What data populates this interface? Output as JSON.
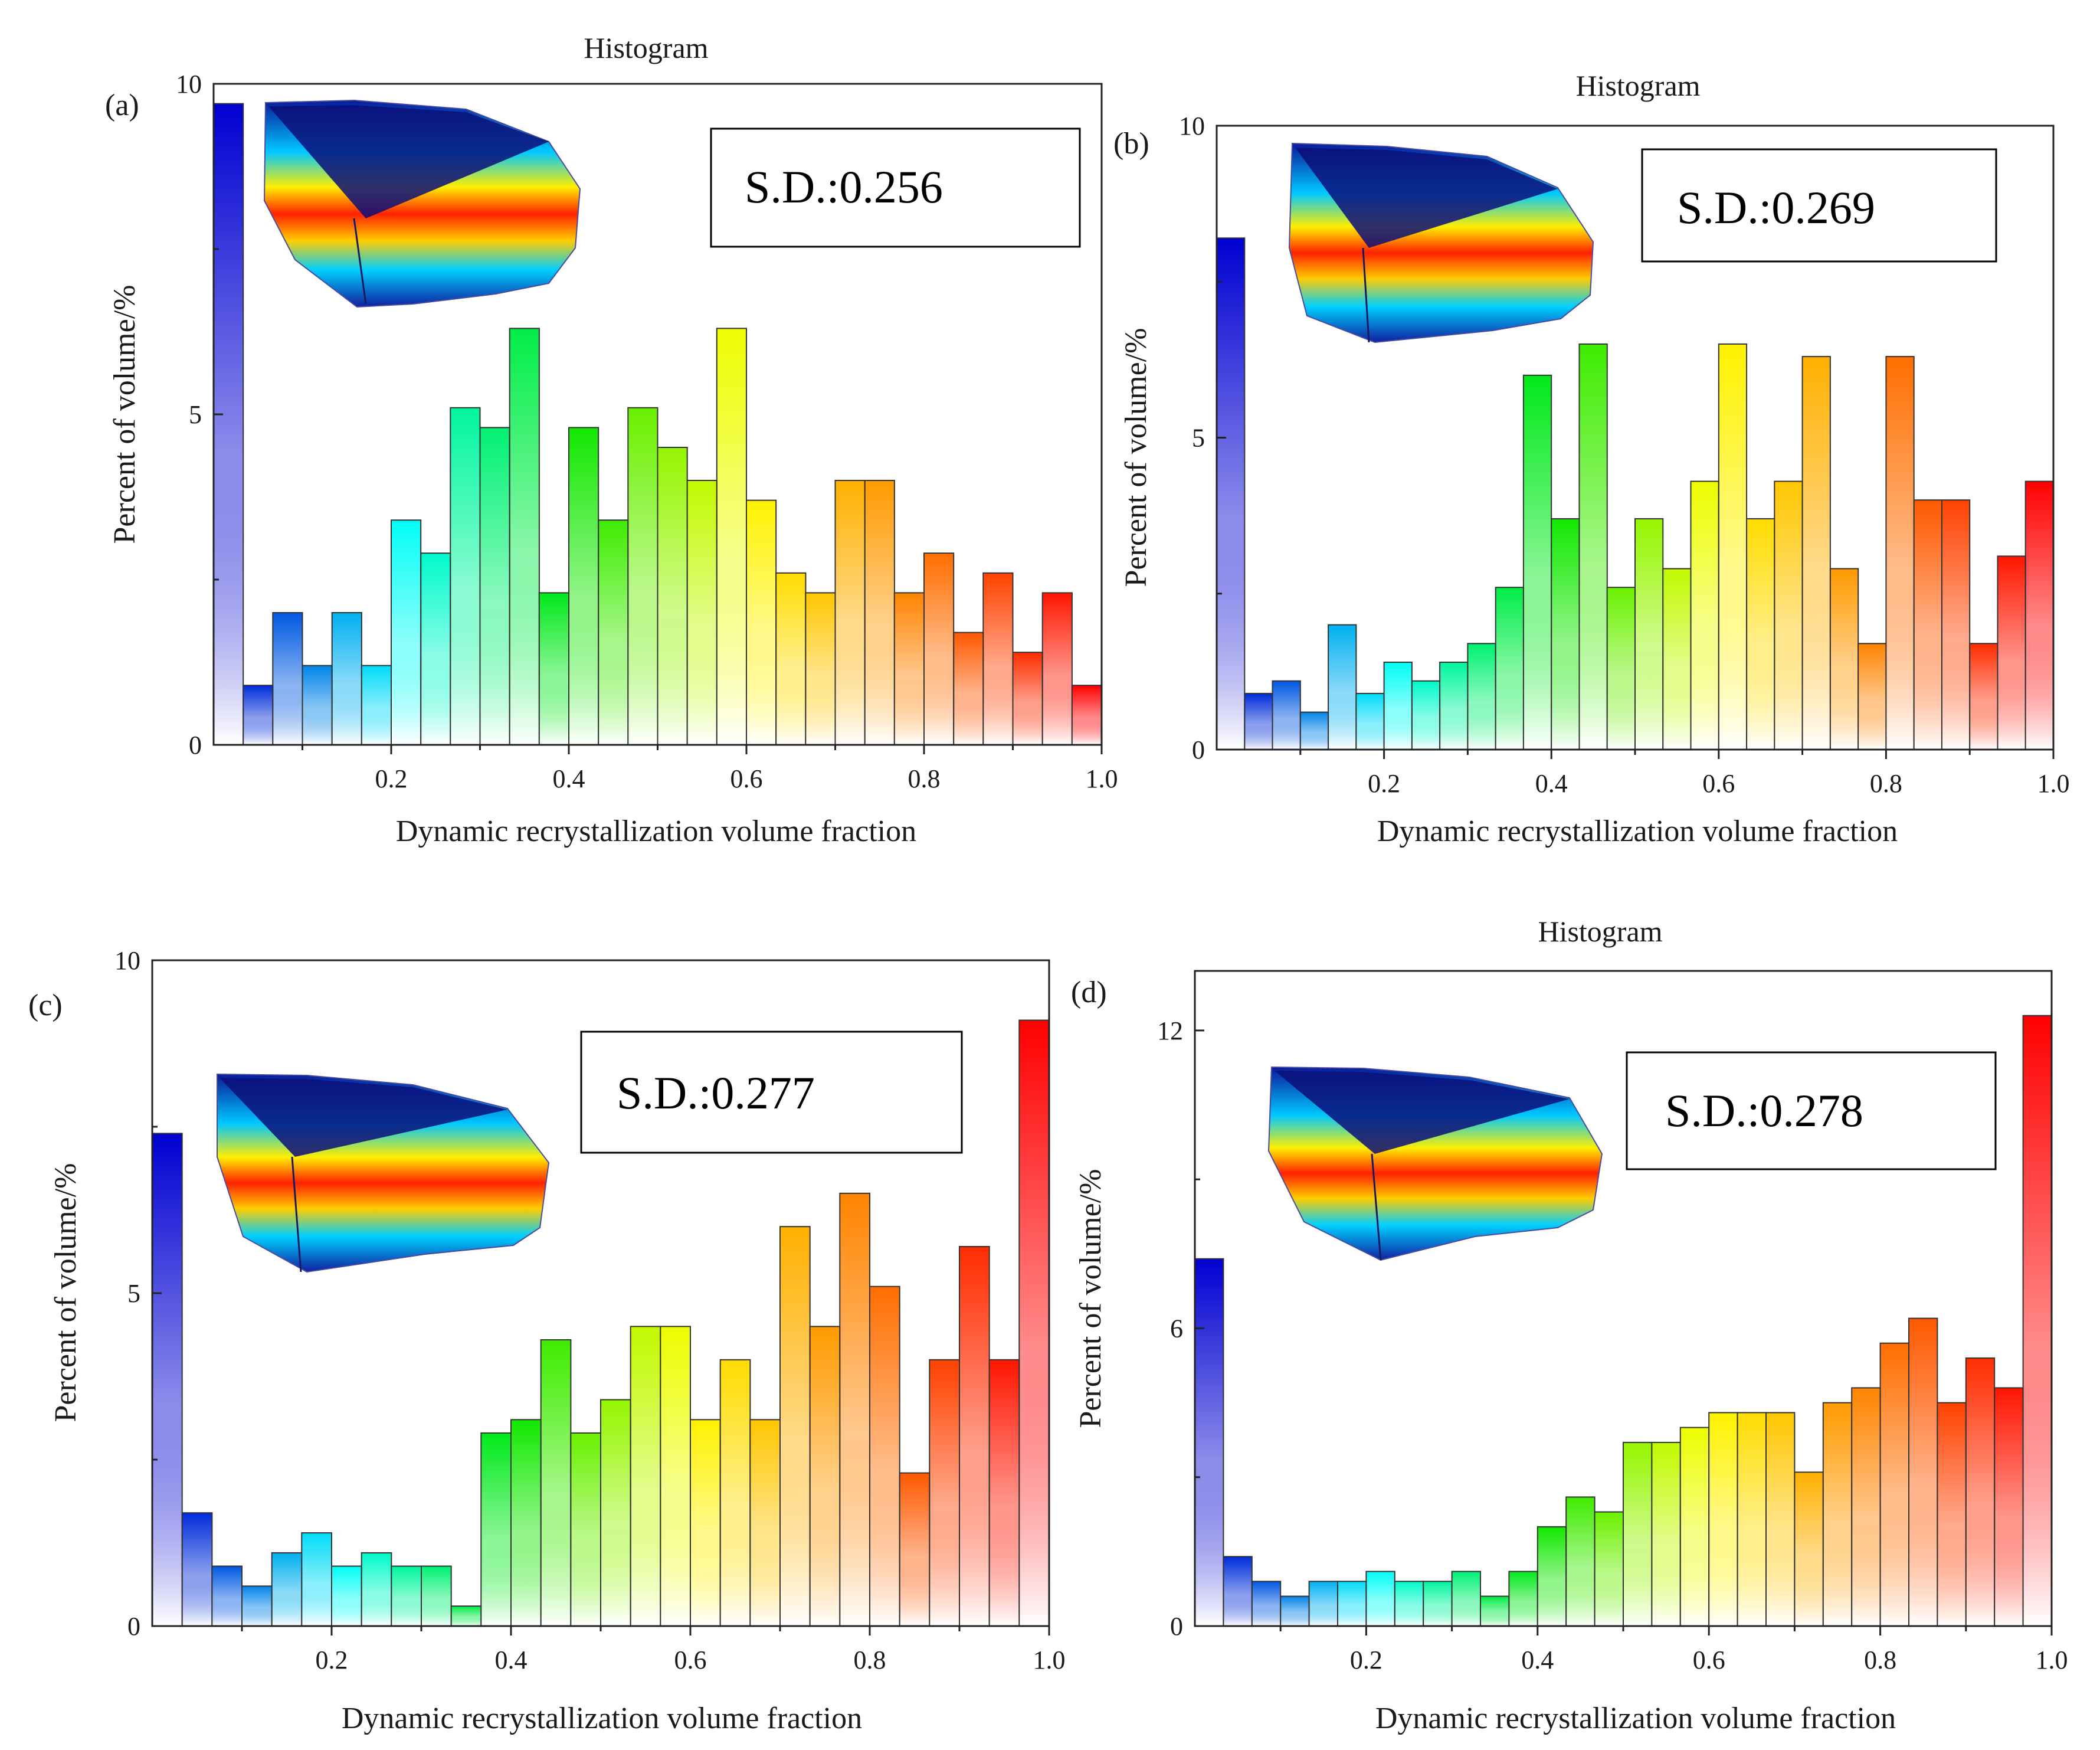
{
  "figure": {
    "colormap": [
      "#0000d2",
      "#00ffff",
      "#00e600",
      "#ffff00",
      "#ff8000",
      "#ff0000"
    ]
  },
  "chart_data": [
    {
      "type": "bar",
      "panel_label": "(a)",
      "title": "Histogram",
      "sd_label": "S.D.:0.256",
      "xlabel": "Dynamic recrystallization volume fraction",
      "ylabel": "Percent of volume/%",
      "xlim": [
        0.0,
        1.0
      ],
      "ylim": [
        0,
        10
      ],
      "xticks": [
        0.2,
        0.4,
        0.6,
        0.8,
        1.0
      ],
      "xtick_labels": [
        "0.2",
        "0.4",
        "0.6",
        "0.8",
        "1.0"
      ],
      "yticks": [
        0,
        5,
        10
      ],
      "ytick_labels": [
        "0",
        "5",
        "10"
      ],
      "bin_width": 0.0333,
      "values": [
        9.7,
        0.9,
        2.0,
        1.2,
        2.0,
        1.2,
        3.4,
        2.9,
        5.1,
        4.8,
        6.3,
        2.3,
        4.8,
        3.4,
        5.1,
        4.5,
        4.0,
        6.3,
        3.7,
        2.6,
        2.3,
        4.0,
        4.0,
        2.3,
        2.9,
        1.7,
        2.6,
        1.4,
        2.3,
        0.9
      ]
    },
    {
      "type": "bar",
      "panel_label": "(b)",
      "title": "Histogram",
      "sd_label": "S.D.:0.269",
      "xlabel": "Dynamic recrystallization volume fraction",
      "ylabel": "Percent of volume/%",
      "xlim": [
        0.0,
        1.0
      ],
      "ylim": [
        0,
        10
      ],
      "xticks": [
        0.2,
        0.4,
        0.6,
        0.8,
        1.0
      ],
      "xtick_labels": [
        "0.2",
        "0.4",
        "0.6",
        "0.8",
        "1.0"
      ],
      "yticks": [
        0,
        5,
        10
      ],
      "ytick_labels": [
        "0",
        "5",
        "10"
      ],
      "bin_width": 0.0333,
      "values": [
        8.2,
        0.9,
        1.1,
        0.6,
        2.0,
        0.9,
        1.4,
        1.1,
        1.4,
        1.7,
        2.6,
        6.0,
        3.7,
        6.5,
        2.6,
        3.7,
        2.9,
        4.3,
        6.5,
        3.7,
        4.3,
        6.3,
        2.9,
        1.7,
        6.3,
        4.0,
        4.0,
        1.7,
        3.1,
        4.3
      ]
    },
    {
      "type": "bar",
      "panel_label": "(c)",
      "title": "",
      "sd_label": "S.D.:0.277",
      "xlabel": "Dynamic recrystallization volume fraction",
      "ylabel": "Percent of volume/%",
      "xlim": [
        0.0,
        1.0
      ],
      "ylim": [
        0,
        10
      ],
      "xticks": [
        0.2,
        0.4,
        0.6,
        0.8,
        1.0
      ],
      "xtick_labels": [
        "0.2",
        "0.4",
        "0.6",
        "0.8",
        "1.0"
      ],
      "yticks": [
        0,
        5,
        10
      ],
      "ytick_labels": [
        "0",
        "5",
        "10"
      ],
      "bin_width": 0.0333,
      "values": [
        7.4,
        1.7,
        0.9,
        0.6,
        1.1,
        1.4,
        0.9,
        1.1,
        0.9,
        0.9,
        0.3,
        2.9,
        3.1,
        4.3,
        2.9,
        3.4,
        4.5,
        4.5,
        3.1,
        4.0,
        3.1,
        6.0,
        4.5,
        6.5,
        5.1,
        2.3,
        4.0,
        5.7,
        4.0,
        9.1
      ]
    },
    {
      "type": "bar",
      "panel_label": "(d)",
      "title": "Histogram",
      "sd_label": "S.D.:0.278",
      "xlabel": "Dynamic recrystallization volume fraction",
      "ylabel": "Percent of volume/%",
      "xlim": [
        0.0,
        1.0
      ],
      "ylim": [
        0,
        13.2
      ],
      "xticks": [
        0.2,
        0.4,
        0.6,
        0.8,
        1.0
      ],
      "xtick_labels": [
        "0.2",
        "0.4",
        "0.6",
        "0.8",
        "1.0"
      ],
      "yticks": [
        0,
        6,
        12
      ],
      "ytick_labels": [
        "0",
        "6",
        "12"
      ],
      "bin_width": 0.0333,
      "values": [
        7.4,
        1.4,
        0.9,
        0.6,
        0.9,
        0.9,
        1.1,
        0.9,
        0.9,
        1.1,
        0.6,
        1.1,
        2.0,
        2.6,
        2.3,
        3.7,
        3.7,
        4.0,
        4.3,
        4.3,
        4.3,
        3.1,
        4.5,
        4.8,
        5.7,
        6.2,
        4.5,
        5.4,
        4.8,
        12.3
      ]
    }
  ]
}
